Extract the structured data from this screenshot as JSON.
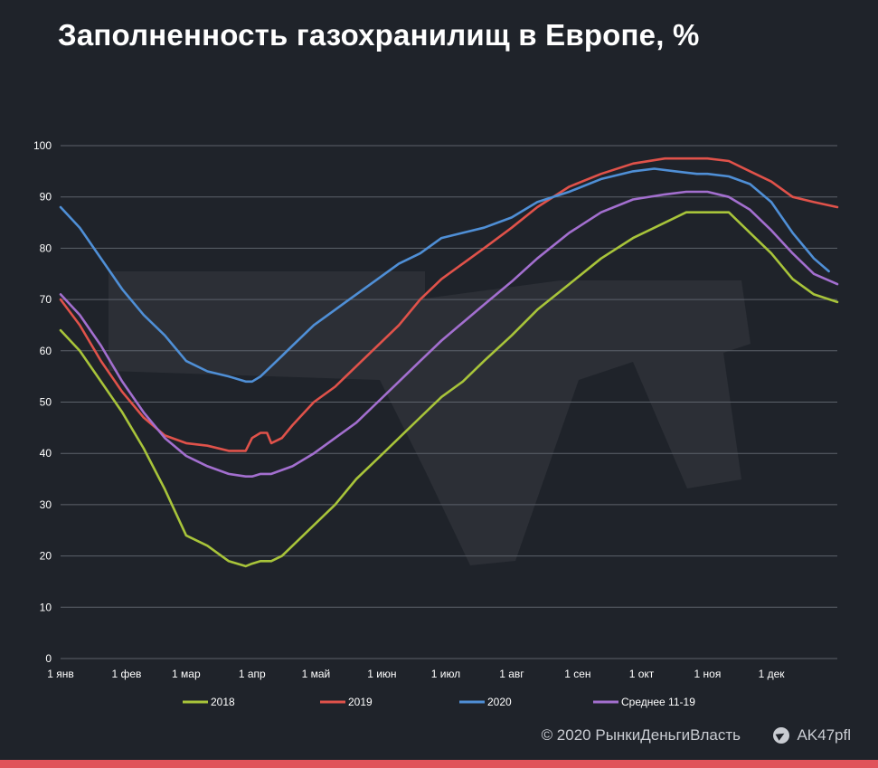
{
  "header": {
    "title": "Заполненность газохранилищ в Европе, %"
  },
  "footer": {
    "copyright": "© 2020  РынкиДеньгиВласть",
    "telegram": "AK47pfl"
  },
  "colors": {
    "background": "#1f232a",
    "grid": "#5d626b",
    "axis_text": "#ffffff",
    "accent_bar": "#e0535a"
  },
  "chart_data": {
    "type": "line",
    "title": "Заполненность газохранилищ в Европе, %",
    "xlabel": "",
    "ylabel": "",
    "xlim": [
      1,
      366
    ],
    "ylim": [
      0,
      100
    ],
    "yticks": [
      0,
      10,
      20,
      30,
      40,
      50,
      60,
      70,
      80,
      90,
      100
    ],
    "xticks": [
      {
        "day": 1,
        "label": "1 янв"
      },
      {
        "day": 32,
        "label": "1 фев"
      },
      {
        "day": 60,
        "label": "1 мар"
      },
      {
        "day": 91,
        "label": "1 апр"
      },
      {
        "day": 121,
        "label": "1 май"
      },
      {
        "day": 152,
        "label": "1 июн"
      },
      {
        "day": 182,
        "label": "1 июл"
      },
      {
        "day": 213,
        "label": "1 авг"
      },
      {
        "day": 244,
        "label": "1 сен"
      },
      {
        "day": 274,
        "label": "1 окт"
      },
      {
        "day": 305,
        "label": "1 ноя"
      },
      {
        "day": 335,
        "label": "1 дек"
      }
    ],
    "grid": true,
    "legend_position": "bottom",
    "series": [
      {
        "name": "2018",
        "color": "#a8c43a",
        "x": [
          1,
          10,
          20,
          30,
          40,
          50,
          60,
          70,
          80,
          88,
          91,
          95,
          100,
          105,
          110,
          120,
          130,
          140,
          150,
          160,
          170,
          180,
          190,
          200,
          213,
          225,
          240,
          255,
          270,
          285,
          295,
          305,
          315,
          325,
          335,
          345,
          355,
          366
        ],
        "y": [
          64,
          60,
          54,
          48,
          41,
          33,
          24,
          22,
          19,
          18,
          18.5,
          19,
          19,
          20,
          22,
          26,
          30,
          35,
          39,
          43,
          47,
          51,
          54,
          58,
          63,
          68,
          73,
          78,
          82,
          85,
          87,
          87,
          87,
          83,
          79,
          74,
          71,
          69.5
        ]
      },
      {
        "name": "2019",
        "color": "#e0524a",
        "x": [
          1,
          10,
          20,
          30,
          40,
          50,
          60,
          70,
          80,
          88,
          91,
          95,
          98,
          100,
          105,
          110,
          120,
          130,
          140,
          150,
          160,
          170,
          180,
          190,
          200,
          213,
          225,
          240,
          255,
          270,
          285,
          295,
          305,
          315,
          325,
          335,
          345,
          355,
          366
        ],
        "y": [
          70,
          65,
          58,
          52,
          47,
          43.5,
          42,
          41.5,
          40.5,
          40.5,
          43,
          44,
          44,
          42,
          43,
          45.5,
          50,
          53,
          57,
          61,
          65,
          70,
          74,
          77,
          80,
          84,
          88,
          92,
          94.5,
          96.5,
          97.5,
          97.5,
          97.5,
          97,
          95,
          93,
          90,
          89,
          88
        ]
      },
      {
        "name": "2020",
        "color": "#4f8fd6",
        "x": [
          1,
          10,
          20,
          30,
          40,
          50,
          60,
          70,
          80,
          88,
          91,
          95,
          100,
          105,
          110,
          120,
          130,
          140,
          150,
          160,
          170,
          180,
          190,
          200,
          213,
          225,
          240,
          255,
          270,
          280,
          290,
          300,
          305,
          315,
          325,
          335,
          345,
          355,
          362
        ],
        "y": [
          88,
          84,
          78,
          72,
          67,
          63,
          58,
          56,
          55,
          54,
          54,
          55,
          57,
          59,
          61,
          65,
          68,
          71,
          74,
          77,
          79,
          82,
          83,
          84,
          86,
          89,
          91,
          93.5,
          95,
          95.5,
          95,
          94.5,
          94.5,
          94,
          92.5,
          89,
          83,
          78,
          75.5
        ]
      },
      {
        "name": "Среднее 11-19",
        "color": "#a36fcf",
        "x": [
          1,
          10,
          20,
          30,
          40,
          50,
          60,
          70,
          80,
          88,
          91,
          95,
          100,
          110,
          120,
          130,
          140,
          150,
          160,
          170,
          180,
          190,
          200,
          213,
          225,
          240,
          255,
          270,
          285,
          295,
          305,
          315,
          325,
          335,
          345,
          355,
          366
        ],
        "y": [
          71,
          67,
          61,
          54,
          48,
          43,
          39.5,
          37.5,
          36,
          35.5,
          35.5,
          36,
          36,
          37.5,
          40,
          43,
          46,
          50,
          54,
          58,
          62,
          65.5,
          69,
          73.5,
          78,
          83,
          87,
          89.5,
          90.5,
          91,
          91,
          90,
          87.5,
          83.5,
          79,
          75,
          73
        ]
      }
    ]
  }
}
